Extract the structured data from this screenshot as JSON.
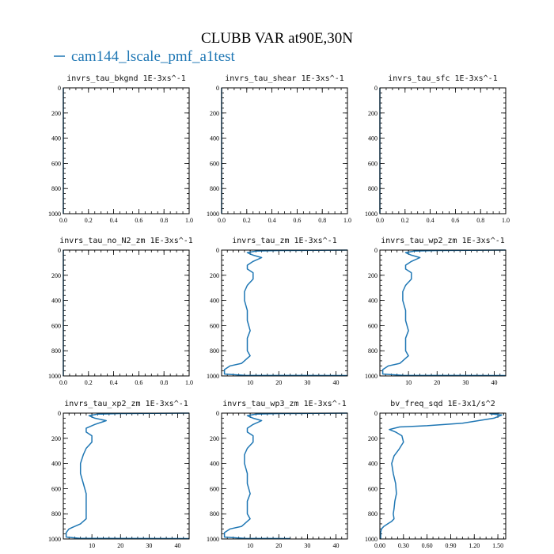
{
  "figure": {
    "title": "CLUBB VAR at90E,30N",
    "legend": [
      {
        "label": "cam144_lscale_pmf_a1test",
        "color": "#1f77b4"
      }
    ]
  },
  "chart_data": [
    {
      "type": "line",
      "title": "invrs_tau_bkgnd   1E-3xs^-1",
      "xlim": [
        0,
        1
      ],
      "ylim": [
        1000,
        0
      ],
      "xticks": [
        "0.0",
        "0.2",
        "0.4",
        "0.6",
        "0.8",
        "1.0"
      ],
      "yticks": [
        "0",
        "200",
        "400",
        "600",
        "800",
        "1000"
      ],
      "series": [
        {
          "name": "cam144_lscale_pmf_a1test",
          "x": [
            0.0,
            0.0
          ],
          "y": [
            0,
            1000
          ]
        }
      ]
    },
    {
      "type": "line",
      "title": "invrs_tau_shear   1E-3xs^-1",
      "xlim": [
        0,
        1
      ],
      "ylim": [
        1000,
        0
      ],
      "xticks": [
        "0.0",
        "0.2",
        "0.4",
        "0.6",
        "0.8",
        "1.0"
      ],
      "yticks": [
        "0",
        "200",
        "400",
        "600",
        "800",
        "1000"
      ],
      "series": [
        {
          "name": "cam144_lscale_pmf_a1test",
          "x": [
            0.0,
            0.0
          ],
          "y": [
            0,
            1000
          ]
        }
      ]
    },
    {
      "type": "line",
      "title": "invrs_tau_sfc   1E-3xs^-1",
      "xlim": [
        0,
        1
      ],
      "ylim": [
        1000,
        0
      ],
      "xticks": [
        "0.0",
        "0.2",
        "0.4",
        "0.6",
        "0.8",
        "1.0"
      ],
      "yticks": [
        "0",
        "200",
        "400",
        "600",
        "800",
        "1000"
      ],
      "series": [
        {
          "name": "cam144_lscale_pmf_a1test",
          "x": [
            0.0,
            0.0
          ],
          "y": [
            0,
            1000
          ]
        }
      ]
    },
    {
      "type": "line",
      "title": "invrs_tau_no_N2_zm   1E-3xs^-1",
      "xlim": [
        0,
        1
      ],
      "ylim": [
        1000,
        0
      ],
      "xticks": [
        "0.0",
        "0.2",
        "0.4",
        "0.6",
        "0.8",
        "1.0"
      ],
      "yticks": [
        "0",
        "200",
        "400",
        "600",
        "800",
        "1000"
      ],
      "series": [
        {
          "name": "cam144_lscale_pmf_a1test",
          "x": [
            0.0,
            0.0
          ],
          "y": [
            0,
            1000
          ]
        }
      ]
    },
    {
      "type": "line",
      "title": "invrs_tau_zm   1E-3xs^-1",
      "xlim": [
        0,
        44
      ],
      "ylim": [
        1000,
        0
      ],
      "xticks": [
        "10",
        "20",
        "30",
        "40"
      ],
      "yticks": [
        "0",
        "200",
        "400",
        "600",
        "800",
        "1000"
      ],
      "series": [
        {
          "name": "cam144_lscale_pmf_a1test",
          "x": [
            44,
            20,
            12,
            9,
            11,
            14,
            11,
            9,
            9,
            11,
            11,
            9,
            8,
            8,
            9,
            9,
            10,
            9,
            9,
            9,
            10,
            9,
            8,
            7,
            3,
            1,
            1,
            8,
            44
          ],
          "y": [
            0,
            3,
            8,
            20,
            40,
            60,
            90,
            120,
            150,
            180,
            230,
            280,
            330,
            400,
            480,
            560,
            640,
            700,
            760,
            800,
            840,
            860,
            880,
            900,
            920,
            950,
            985,
            995,
            997
          ]
        }
      ]
    },
    {
      "type": "line",
      "title": "invrs_tau_wp2_zm   1E-3xs^-1",
      "xlim": [
        0,
        44
      ],
      "ylim": [
        1000,
        0
      ],
      "xticks": [
        "10",
        "20",
        "30",
        "40"
      ],
      "yticks": [
        "0",
        "200",
        "400",
        "600",
        "800",
        "1000"
      ],
      "series": [
        {
          "name": "cam144_lscale_pmf_a1test",
          "x": [
            44,
            20,
            12,
            9,
            11,
            14,
            11,
            9,
            9,
            11,
            11,
            9,
            8,
            8,
            9,
            9,
            10,
            9,
            9,
            9,
            10,
            9,
            8,
            7,
            3,
            1,
            1,
            8,
            44
          ],
          "y": [
            0,
            3,
            8,
            20,
            40,
            60,
            90,
            120,
            150,
            180,
            230,
            280,
            330,
            400,
            480,
            560,
            640,
            700,
            760,
            800,
            840,
            860,
            880,
            900,
            920,
            950,
            985,
            995,
            997
          ]
        }
      ]
    },
    {
      "type": "line",
      "title": "invrs_tau_xp2_zm   1E-3xs^-1",
      "xlim": [
        0,
        44
      ],
      "ylim": [
        1000,
        0
      ],
      "xticks": [
        "10",
        "20",
        "30",
        "40"
      ],
      "yticks": [
        "0",
        "200",
        "400",
        "600",
        "800",
        "1000"
      ],
      "series": [
        {
          "name": "cam144_lscale_pmf_a1test",
          "x": [
            44,
            20,
            12,
            9,
            11,
            15,
            11,
            8,
            8,
            10,
            10,
            8,
            7,
            6,
            6,
            7,
            8,
            8,
            8,
            8,
            8,
            7,
            6,
            4,
            2,
            1,
            1,
            6,
            44
          ],
          "y": [
            0,
            3,
            8,
            20,
            40,
            60,
            90,
            120,
            150,
            180,
            230,
            280,
            330,
            400,
            480,
            560,
            640,
            700,
            760,
            800,
            840,
            860,
            880,
            900,
            920,
            950,
            985,
            995,
            997
          ]
        }
      ]
    },
    {
      "type": "line",
      "title": "invrs_tau_wp3_zm   1E-3xs^-1",
      "xlim": [
        0,
        44
      ],
      "ylim": [
        1000,
        0
      ],
      "xticks": [
        "10",
        "20",
        "30",
        "40"
      ],
      "yticks": [
        "0",
        "200",
        "400",
        "600",
        "800",
        "1000"
      ],
      "series": [
        {
          "name": "cam144_lscale_pmf_a1test",
          "x": [
            44,
            20,
            12,
            9,
            11,
            14,
            11,
            9,
            9,
            11,
            11,
            9,
            8,
            8,
            9,
            9,
            10,
            9,
            9,
            9,
            10,
            9,
            8,
            7,
            3,
            1,
            1,
            8,
            24
          ],
          "y": [
            0,
            3,
            8,
            20,
            40,
            60,
            90,
            120,
            150,
            180,
            230,
            280,
            330,
            400,
            480,
            560,
            640,
            700,
            760,
            800,
            840,
            860,
            880,
            900,
            920,
            950,
            985,
            995,
            997
          ]
        }
      ]
    },
    {
      "type": "line",
      "title": "bv_freq_sqd   1E-3x1/s^2",
      "xlim": [
        0,
        1.6
      ],
      "ylim": [
        1000,
        0
      ],
      "xticks": [
        "0.00",
        "0.30",
        "0.60",
        "0.90",
        "1.20",
        "1.50"
      ],
      "yticks": [
        "0",
        "200",
        "400",
        "600",
        "800",
        "1000"
      ],
      "series": [
        {
          "name": "cam144_lscale_pmf_a1test",
          "x": [
            1.52,
            1.4,
            1.55,
            1.45,
            1.05,
            0.6,
            0.25,
            0.12,
            0.2,
            0.28,
            0.3,
            0.24,
            0.18,
            0.15,
            0.17,
            0.2,
            0.21,
            0.19,
            0.18,
            0.17,
            0.18,
            0.15,
            0.1,
            0.05,
            0.02,
            0.01,
            0.01,
            0.01
          ],
          "y": [
            0,
            5,
            15,
            40,
            80,
            100,
            110,
            130,
            150,
            180,
            230,
            290,
            340,
            400,
            480,
            560,
            640,
            700,
            760,
            800,
            840,
            860,
            880,
            900,
            920,
            950,
            980,
            1000
          ]
        }
      ]
    }
  ]
}
